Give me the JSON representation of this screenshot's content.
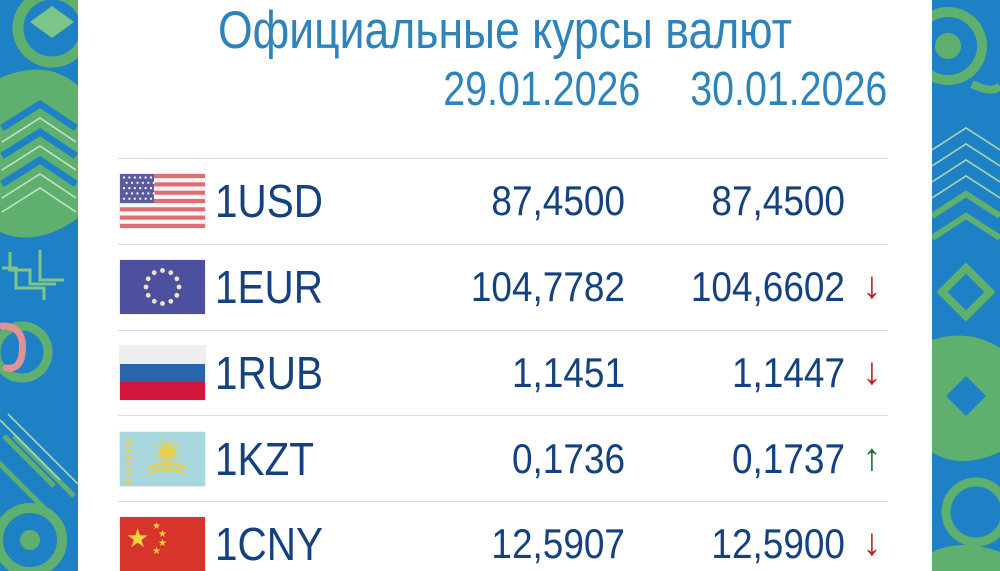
{
  "title": "Официальные курсы валют",
  "columns": [
    "29.01.2026",
    "30.01.2026"
  ],
  "rows": [
    {
      "flag": "us",
      "currency": "1USD",
      "rate_prev": "87,4500",
      "rate_next": "87,4500",
      "trend": "none"
    },
    {
      "flag": "eu",
      "currency": "1EUR",
      "rate_prev": "104,7782",
      "rate_next": "104,6602",
      "trend": "down"
    },
    {
      "flag": "ru",
      "currency": "1RUB",
      "rate_prev": "1,1451",
      "rate_next": "1,1447",
      "trend": "down"
    },
    {
      "flag": "kz",
      "currency": "1KZT",
      "rate_prev": "0,1736",
      "rate_next": "0,1737",
      "trend": "up"
    },
    {
      "flag": "cn",
      "currency": "1CNY",
      "rate_prev": "12,5907",
      "rate_next": "12,5900",
      "trend": "down"
    }
  ],
  "icons": {
    "trend_up": "↑",
    "trend_down": "↓",
    "flags": {
      "us": "us-flag-icon",
      "eu": "eu-flag-icon",
      "ru": "ru-flag-icon",
      "kz": "kz-flag-icon",
      "cn": "cn-flag-icon"
    }
  },
  "colors": {
    "title-blue": "#2e83ba",
    "value-navy": "#14417f",
    "divider": "#dcdcdc",
    "arrow-red": "#c1201f",
    "arrow-green": "#1d7030",
    "pattern-blue": "#1e81c5",
    "pattern-green": "#5fb06f"
  }
}
